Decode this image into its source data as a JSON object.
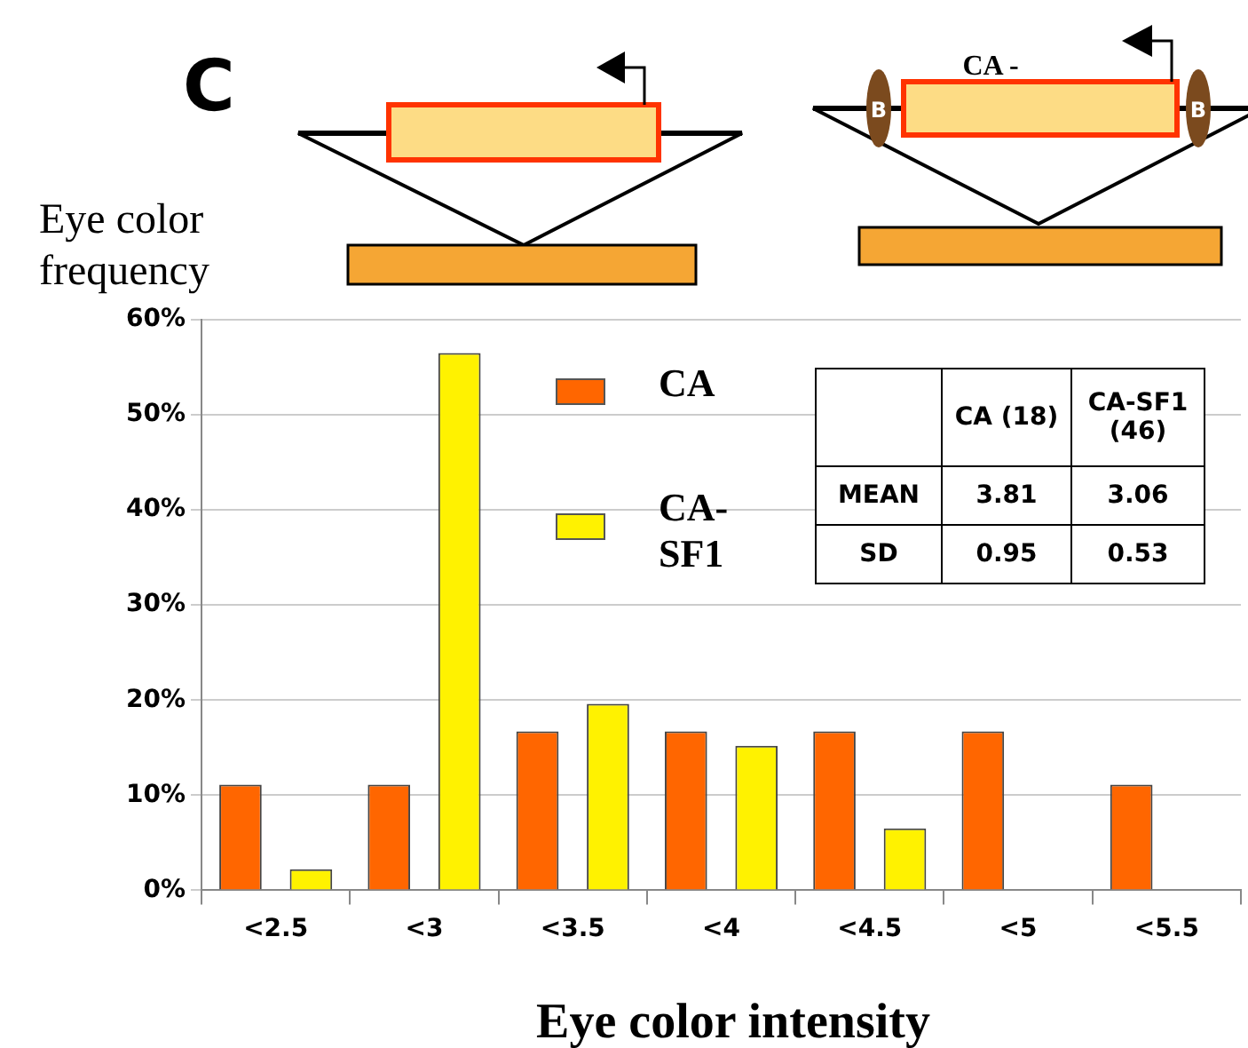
{
  "chart_data": {
    "type": "bar",
    "xlabel": "Eye color intensity",
    "ylabel": "Eye color frequency",
    "categories": [
      "<2.5",
      "<3",
      "<3.5",
      "<4",
      "<4.5",
      "<5",
      "<5.5"
    ],
    "series": [
      {
        "name": "CA",
        "color": "#ff6600",
        "values": [
          11.1,
          11.1,
          16.7,
          16.7,
          16.7,
          16.7,
          11.1
        ]
      },
      {
        "name": "CA-SF1",
        "color": "#fff200",
        "values": [
          2.2,
          56.5,
          19.6,
          15.2,
          6.5,
          0,
          0
        ]
      }
    ],
    "ylim": [
      0,
      60
    ],
    "yticks": [
      {
        "value": 0,
        "label": "0%"
      },
      {
        "value": 10,
        "label": "10%"
      },
      {
        "value": 20,
        "label": "20%"
      },
      {
        "value": 30,
        "label": "30%"
      },
      {
        "value": 40,
        "label": "40%"
      },
      {
        "value": 50,
        "label": "50%"
      },
      {
        "value": 60,
        "label": "60%"
      }
    ],
    "grid": "y",
    "legend": "top",
    "annotations": [
      "C",
      "CA -",
      "B",
      "B",
      "CA (18)",
      "CA-SF1 (46)",
      "MEAN",
      "3.81",
      "3.06",
      "SD",
      "0.95",
      "0.53"
    ]
  }
}
